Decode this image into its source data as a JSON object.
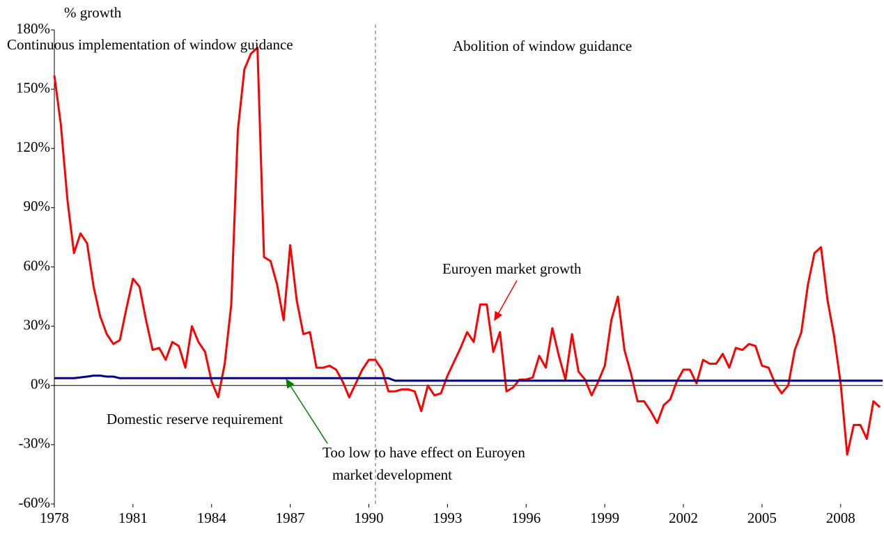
{
  "chart_data": {
    "type": "line",
    "y_axis_label": "% growth",
    "annotations": [
      "Continuous implementation of window guidance",
      "Abolition of window guidance",
      "Euroyen market growth",
      "Domestic reserve requirement",
      "Too low to have effect on Euroyen",
      "market development"
    ],
    "divider_x": 1990.25,
    "x": [
      1978,
      1978.25,
      1978.5,
      1978.75,
      1979,
      1979.25,
      1979.5,
      1979.75,
      1980,
      1980.25,
      1980.5,
      1980.75,
      1981,
      1981.25,
      1981.5,
      1981.75,
      1982,
      1982.25,
      1982.5,
      1982.75,
      1983,
      1983.25,
      1983.5,
      1983.75,
      1984,
      1984.25,
      1984.5,
      1984.75,
      1985,
      1985.25,
      1985.5,
      1985.75,
      1986,
      1986.25,
      1986.5,
      1986.75,
      1987,
      1987.25,
      1987.5,
      1987.75,
      1988,
      1988.25,
      1988.5,
      1988.75,
      1989,
      1989.25,
      1989.5,
      1989.75,
      1990,
      1990.25,
      1990.5,
      1990.75,
      1991,
      1991.25,
      1991.5,
      1991.75,
      1992,
      1992.25,
      1992.5,
      1992.75,
      1993,
      1993.25,
      1993.5,
      1993.75,
      1994,
      1994.25,
      1994.5,
      1994.75,
      1995,
      1995.25,
      1995.5,
      1995.75,
      1996,
      1996.25,
      1996.5,
      1996.75,
      1997,
      1997.25,
      1997.5,
      1997.75,
      1998,
      1998.25,
      1998.5,
      1998.75,
      1999,
      1999.25,
      1999.5,
      1999.75,
      2000,
      2000.25,
      2000.5,
      2000.75,
      2001,
      2001.25,
      2001.5,
      2001.75,
      2002,
      2002.25,
      2002.5,
      2002.75,
      2003,
      2003.25,
      2003.5,
      2003.75,
      2004,
      2004.25,
      2004.5,
      2004.75,
      2005,
      2005.25,
      2005.5,
      2005.75,
      2006,
      2006.25,
      2006.5,
      2006.75,
      2007,
      2007.25,
      2007.5,
      2007.75,
      2008,
      2008.25,
      2008.5,
      2008.75,
      2009,
      2009.25,
      2009.5
    ],
    "series": [
      {
        "name": "Euroyen market growth",
        "color": "#ff0000",
        "values": [
          157,
          132,
          94,
          67,
          77,
          72,
          50,
          35,
          26,
          21,
          23,
          39,
          54,
          50,
          33,
          18,
          19,
          13,
          22,
          20,
          9,
          30,
          22,
          17,
          2,
          -6,
          11,
          41,
          129,
          160,
          168,
          171,
          65,
          63,
          51,
          33,
          71,
          43,
          26,
          27,
          9,
          9,
          10,
          8,
          2,
          -6,
          1,
          8,
          13,
          13,
          8,
          -3,
          -3,
          -2,
          -2,
          -3,
          -13,
          0,
          -5,
          -4,
          5,
          12,
          19,
          27,
          22,
          41,
          41,
          17,
          27,
          -3,
          -1,
          3,
          3,
          4,
          15,
          9,
          29,
          15,
          3,
          26,
          7,
          3,
          -5,
          2,
          10,
          33,
          45,
          18,
          6,
          -8,
          -8,
          -13,
          -19,
          -10,
          -7,
          2,
          8,
          8,
          1,
          13,
          11,
          11,
          16,
          9,
          19,
          18,
          21,
          20,
          10,
          9,
          1,
          -4,
          0,
          18,
          27,
          51,
          67,
          70,
          43,
          25,
          1,
          -35,
          -20,
          -20,
          -27,
          -8,
          -11
        ]
      },
      {
        "name": "Domestic reserve requirement",
        "color": "#000080",
        "x": [
          1978,
          1978.75,
          1979.25,
          1979.5,
          1979.75,
          1980,
          1980.25,
          1980.5,
          1990.5,
          1990.75,
          1991,
          2009.6
        ],
        "values": [
          3.7,
          3.7,
          4.5,
          5,
          5,
          4.5,
          4.5,
          3.7,
          3.7,
          3.7,
          2.4,
          2.4
        ]
      }
    ],
    "xlim": [
      1978,
      2009.6
    ],
    "xticks": [
      1978,
      1981,
      1984,
      1987,
      1990,
      1993,
      1996,
      1999,
      2002,
      2005,
      2008
    ],
    "ylim": [
      -60,
      180
    ],
    "yticks": [
      {
        "value": -60,
        "label": "-60%"
      },
      {
        "value": -30,
        "label": "-30%"
      },
      {
        "value": 0,
        "label": "0%"
      },
      {
        "value": 30,
        "label": "30%"
      },
      {
        "value": 60,
        "label": "60%"
      },
      {
        "value": 90,
        "label": "90%"
      },
      {
        "value": 120,
        "label": "120%"
      },
      {
        "value": 150,
        "label": "150%"
      },
      {
        "value": 180,
        "label": "180%"
      }
    ]
  }
}
